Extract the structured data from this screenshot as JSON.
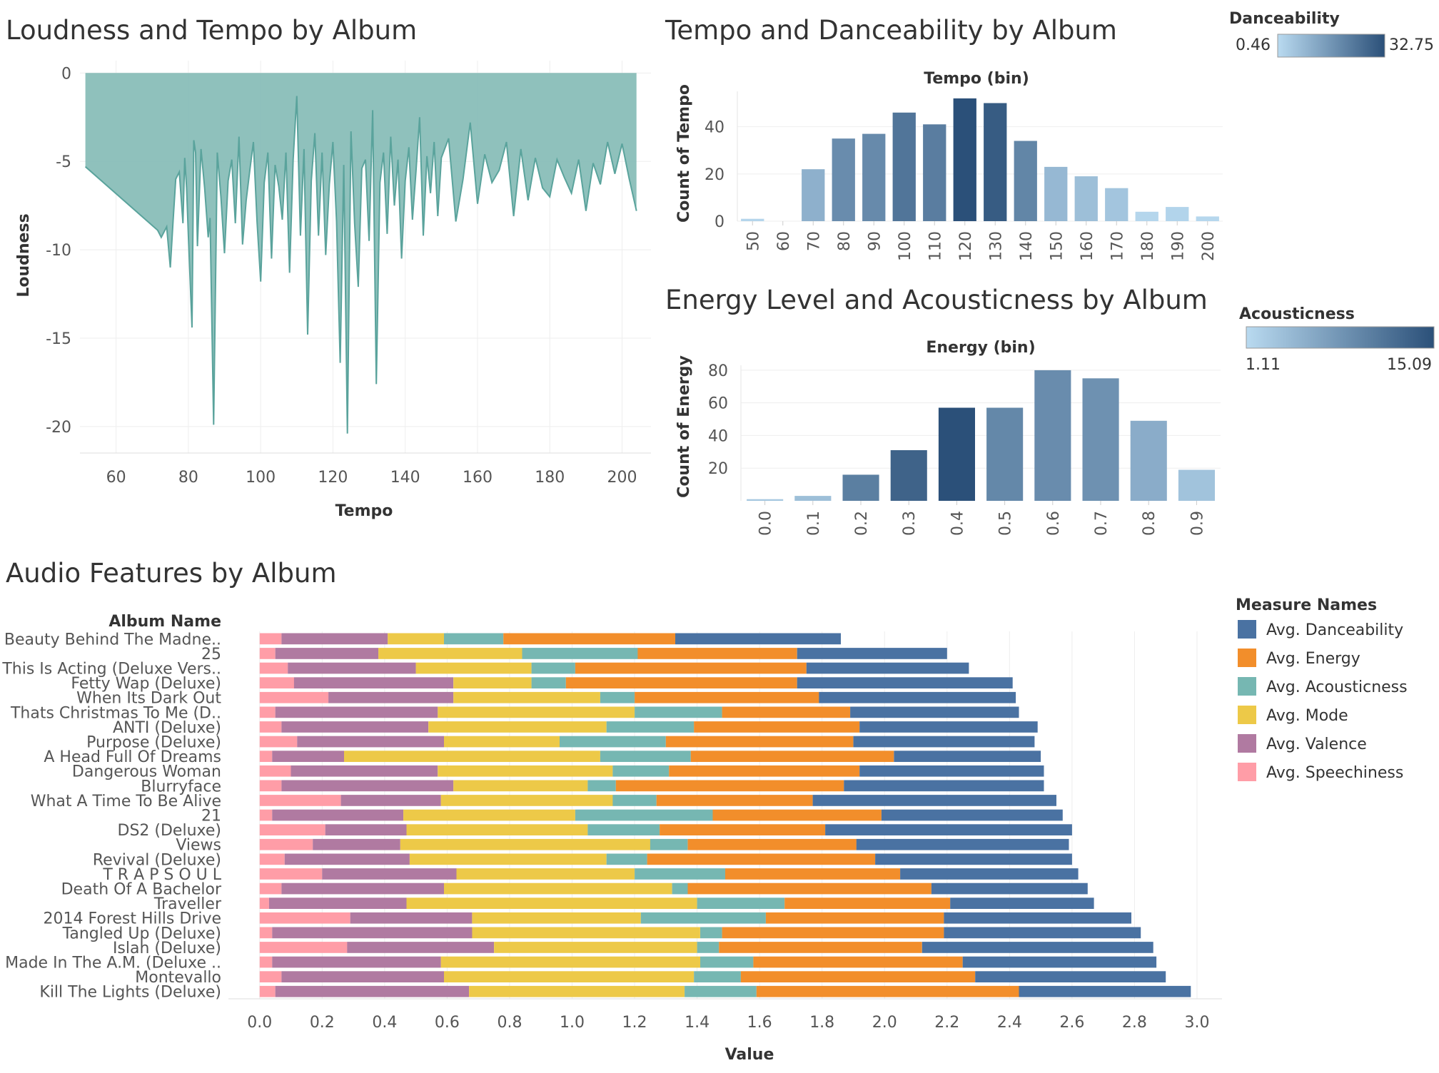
{
  "colors": {
    "danceability": "#4a72a2",
    "energy": "#f28e2b",
    "acousticness": "#76b7b2",
    "mode": "#edc948",
    "valence": "#b07aa1",
    "speechiness": "#ff9da7",
    "area": "#86bcb6",
    "area_line": "#5aa39c",
    "ramp_light": "#b9daf0",
    "ramp_dark": "#2b5079"
  },
  "chart_data": [
    {
      "id": "loudness",
      "type": "area",
      "title": "Loudness and Tempo by Album",
      "xlabel": "Tempo",
      "ylabel": "Loudness",
      "xlim": [
        50,
        208
      ],
      "ylim": [
        -21.5,
        0.7
      ],
      "xticks": [
        "60",
        "80",
        "100",
        "120",
        "140",
        "160",
        "180",
        "200"
      ],
      "xtick_values": [
        60,
        80,
        100,
        120,
        140,
        160,
        180,
        200
      ],
      "yticks": [
        "0",
        "-5",
        "-10",
        "-15",
        "-20"
      ],
      "ytick_values": [
        0,
        -5,
        -10,
        -15,
        -20
      ],
      "baseline": 0,
      "x": [
        51.5,
        71.5,
        72.5,
        74,
        75,
        75.8,
        76.5,
        77.5,
        78.5,
        79,
        79.5,
        80,
        81,
        81.5,
        82,
        82.5,
        83.5,
        84.5,
        85.5,
        86,
        87,
        88,
        89,
        90,
        91,
        92,
        93,
        94,
        95,
        96,
        97,
        98,
        99,
        100,
        101,
        102,
        103,
        104,
        105,
        106,
        107,
        108,
        109,
        110,
        111,
        112,
        113,
        114,
        115,
        116,
        117,
        118,
        119,
        120,
        121,
        122,
        123,
        124,
        125,
        126,
        127,
        128,
        129,
        130,
        131,
        132,
        133,
        134,
        135,
        136,
        137,
        138,
        139,
        140,
        141,
        142,
        143,
        144,
        145,
        146,
        147,
        148,
        149,
        150,
        152,
        154,
        156,
        158,
        160,
        162,
        164,
        166,
        168,
        170,
        172,
        174,
        176,
        178,
        180,
        182,
        184,
        186,
        188,
        190,
        192,
        194,
        196,
        198,
        200,
        202,
        204
      ],
      "y": [
        -5.3,
        -8.9,
        -9.3,
        -8.7,
        -11.0,
        -8.3,
        -6.0,
        -5.6,
        -8.5,
        -4.8,
        -6.5,
        -9.2,
        -14.4,
        -3.8,
        -4.5,
        -9.8,
        -4.3,
        -6.5,
        -9.3,
        -8.2,
        -19.9,
        -4.5,
        -7.0,
        -10.2,
        -6.1,
        -4.9,
        -8.5,
        -3.6,
        -9.7,
        -7.2,
        -5.5,
        -3.9,
        -8.4,
        -11.8,
        -6.2,
        -4.5,
        -10.5,
        -5.2,
        -6.4,
        -8.3,
        -4.5,
        -11.3,
        -4.9,
        -1.3,
        -9.2,
        -4.3,
        -14.8,
        -6.1,
        -3.4,
        -9.2,
        -4.5,
        -10.3,
        -6.3,
        -3.9,
        -8.4,
        -16.4,
        -5.2,
        -20.4,
        -3.3,
        -8.5,
        -12.1,
        -5.4,
        -4.9,
        -9.5,
        -2.1,
        -17.6,
        -6.2,
        -4.5,
        -9.1,
        -3.6,
        -7.5,
        -4.9,
        -10.5,
        -6.1,
        -4.2,
        -8.3,
        -5.5,
        -2.5,
        -9.2,
        -4.7,
        -6.8,
        -3.9,
        -8.1,
        -4.8,
        -3.7,
        -8.4,
        -6.0,
        -2.8,
        -7.4,
        -4.6,
        -6.2,
        -5.5,
        -3.9,
        -8.1,
        -4.3,
        -7.2,
        -4.8,
        -6.5,
        -7.0,
        -4.9,
        -5.9,
        -6.8,
        -4.9,
        -7.8,
        -5.1,
        -6.3,
        -3.9,
        -5.7,
        -4.0,
        -6.0,
        -7.8
      ]
    },
    {
      "id": "tempo",
      "type": "bar",
      "title": "Tempo and Danceability by Album",
      "subtitle": "Tempo (bin)",
      "xlabel": "Tempo (bin)",
      "ylabel": "Count of Tempo",
      "categories": [
        "50",
        "60",
        "70",
        "80",
        "90",
        "100",
        "110",
        "120",
        "130",
        "140",
        "150",
        "160",
        "170",
        "180",
        "190",
        "200"
      ],
      "values": [
        1,
        0,
        22,
        35,
        37,
        46,
        41,
        52,
        50,
        34,
        23,
        19,
        14,
        4,
        6,
        2
      ],
      "color_values": [
        1.2,
        0,
        10,
        18.5,
        19,
        24,
        22,
        32.75,
        30,
        20,
        8,
        6.5,
        5,
        1,
        1.5,
        0.8
      ],
      "ylim": [
        0,
        55
      ],
      "yticks": [
        "0",
        "20",
        "40"
      ],
      "ytick_values": [
        0,
        20,
        40
      ],
      "legend": {
        "title": "Danceability",
        "min_label": "0.46",
        "max_label": "32.75"
      }
    },
    {
      "id": "energy",
      "type": "bar",
      "title": "Energy Level and Acousticness by Album",
      "subtitle": "Energy (bin)",
      "xlabel": "Energy (bin)",
      "ylabel": "Count of Energy",
      "categories": [
        "0.0",
        "0.1",
        "0.2",
        "0.3",
        "0.4",
        "0.5",
        "0.6",
        "0.7",
        "0.8",
        "0.9"
      ],
      "values": [
        1,
        3,
        16,
        31,
        57,
        57,
        80,
        75,
        49,
        19
      ],
      "color_values": [
        2,
        3,
        10,
        13,
        15.09,
        9,
        8.5,
        8,
        5,
        2.5
      ],
      "ylim": [
        0,
        83
      ],
      "yticks": [
        "20",
        "40",
        "60",
        "80"
      ],
      "ytick_values": [
        20,
        40,
        60,
        80
      ],
      "legend": {
        "title": "Acousticness",
        "min_label": "1.11",
        "max_label": "15.09"
      }
    },
    {
      "id": "audio",
      "type": "bar",
      "orientation": "horizontal",
      "stacked": true,
      "title": "Audio Features by Album",
      "row_header": "Album Name",
      "xlabel": "Value",
      "xlim": [
        -0.1,
        3.08
      ],
      "xticks": [
        "0.0",
        "0.2",
        "0.4",
        "0.6",
        "0.8",
        "1.0",
        "1.2",
        "1.4",
        "1.6",
        "1.8",
        "2.0",
        "2.2",
        "2.4",
        "2.6",
        "2.8",
        "3.0"
      ],
      "xtick_values": [
        0,
        0.2,
        0.4,
        0.6,
        0.8,
        1.0,
        1.2,
        1.4,
        1.6,
        1.8,
        2.0,
        2.2,
        2.4,
        2.6,
        2.8,
        3.0
      ],
      "legend_title": "Measure Names",
      "legend": [
        "Avg. Danceability",
        "Avg. Energy",
        "Avg. Acousticness",
        "Avg. Mode",
        "Avg. Valence",
        "Avg. Speechiness"
      ],
      "categories": [
        "Beauty Behind The Madne..",
        "25",
        "This Is Acting (Deluxe Vers..",
        "Fetty Wap (Deluxe)",
        "When Its Dark Out",
        "Thats Christmas To Me (D..",
        "ANTI (Deluxe)",
        "Purpose (Deluxe)",
        "A Head Full Of Dreams",
        "Dangerous Woman",
        "Blurryface",
        "What A Time To Be Alive",
        "21",
        "DS2 (Deluxe)",
        "Views",
        "Revival (Deluxe)",
        "T R A P S O U L",
        "Death Of A Bachelor",
        "Traveller",
        "2014 Forest Hills Drive",
        "Tangled Up (Deluxe)",
        "Islah (Deluxe)",
        "Made In The A.M. (Deluxe ..",
        "Montevallo",
        "Kill The Lights (Deluxe)"
      ],
      "series": [
        {
          "name": "Avg. Speechiness",
          "values": [
            0.07,
            0.05,
            0.09,
            0.11,
            0.22,
            0.05,
            0.07,
            0.12,
            0.04,
            0.1,
            0.07,
            0.26,
            0.04,
            0.21,
            0.17,
            0.08,
            0.2,
            0.07,
            0.03,
            0.29,
            0.04,
            0.28,
            0.04,
            0.07,
            0.05
          ]
        },
        {
          "name": "Avg. Valence",
          "values": [
            0.34,
            0.33,
            0.41,
            0.51,
            0.4,
            0.52,
            0.47,
            0.47,
            0.23,
            0.47,
            0.55,
            0.32,
            0.42,
            0.26,
            0.28,
            0.4,
            0.43,
            0.52,
            0.44,
            0.39,
            0.64,
            0.47,
            0.54,
            0.52,
            0.62
          ]
        },
        {
          "name": "Avg. Mode",
          "values": [
            0.18,
            0.46,
            0.37,
            0.25,
            0.47,
            0.63,
            0.57,
            0.37,
            0.82,
            0.56,
            0.43,
            0.55,
            0.55,
            0.58,
            0.8,
            0.63,
            0.57,
            0.73,
            0.93,
            0.54,
            0.73,
            0.65,
            0.83,
            0.8,
            0.69
          ]
        },
        {
          "name": "Avg. Acousticness",
          "values": [
            0.19,
            0.37,
            0.14,
            0.11,
            0.11,
            0.28,
            0.28,
            0.34,
            0.29,
            0.18,
            0.09,
            0.14,
            0.44,
            0.23,
            0.12,
            0.13,
            0.29,
            0.05,
            0.28,
            0.4,
            0.07,
            0.07,
            0.17,
            0.15,
            0.23
          ]
        },
        {
          "name": "Avg. Energy",
          "values": [
            0.55,
            0.51,
            0.74,
            0.74,
            0.59,
            0.41,
            0.53,
            0.6,
            0.65,
            0.61,
            0.73,
            0.5,
            0.54,
            0.53,
            0.54,
            0.73,
            0.56,
            0.78,
            0.53,
            0.57,
            0.71,
            0.65,
            0.67,
            0.75,
            0.84
          ]
        },
        {
          "name": "Avg. Danceability",
          "values": [
            0.53,
            0.48,
            0.52,
            0.69,
            0.63,
            0.54,
            0.57,
            0.58,
            0.47,
            0.59,
            0.64,
            0.78,
            0.58,
            0.79,
            0.68,
            0.63,
            0.57,
            0.5,
            0.46,
            0.6,
            0.63,
            0.74,
            0.62,
            0.61,
            0.55
          ]
        }
      ]
    }
  ]
}
